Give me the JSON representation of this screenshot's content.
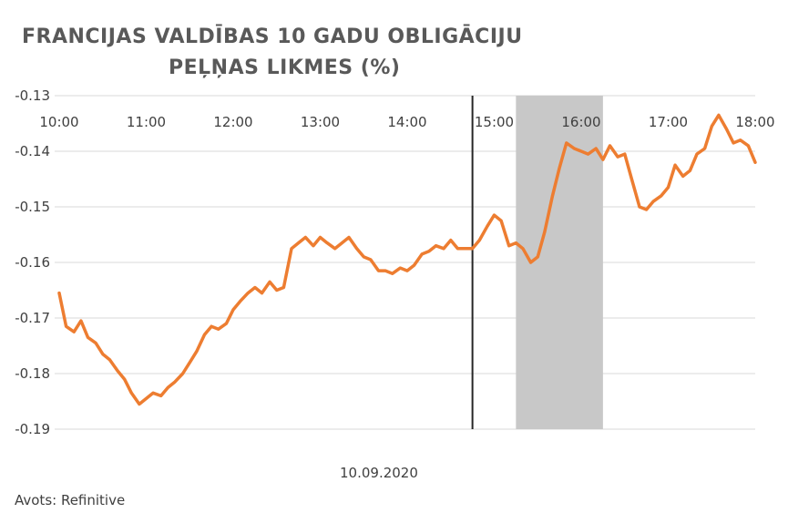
{
  "chart_data": {
    "type": "line",
    "title_lines": [
      "FRANCIJAS  VALDĪBAS  10 GADU  OBLIGĀCIJU",
      "PEĻŅAS  LIKMES  (%)"
    ],
    "xlabel": "10.09.2020",
    "source": "Avots: Refinitive",
    "x_tick_labels": [
      "10:00",
      "11:00",
      "12:00",
      "13:00",
      "14:00",
      "15:00",
      "16:00",
      "17:00",
      "18:00"
    ],
    "y_tick_labels": [
      "-0.13",
      "-0.14",
      "-0.15",
      "-0.16",
      "-0.17",
      "-0.18",
      "-0.19"
    ],
    "ylim": [
      -0.19,
      -0.13
    ],
    "xlim_hours": [
      10,
      18
    ],
    "grid": "horizontal",
    "shaded_region_hours": [
      15.25,
      16.25
    ],
    "vertical_line_hour": 14.75,
    "colors": {
      "series": "#ED7D31",
      "grid": "#D9D9D9",
      "shade": "#C8C8C8",
      "vline": "#262626",
      "text": "#404040"
    },
    "series": [
      {
        "x": [
          10.0,
          10.08,
          10.17,
          10.25,
          10.33,
          10.42,
          10.5,
          10.58,
          10.67,
          10.75,
          10.83,
          10.92,
          11.0,
          11.08,
          11.17,
          11.25,
          11.33,
          11.42,
          11.5,
          11.58,
          11.67,
          11.75,
          11.83,
          11.92,
          12.0,
          12.08,
          12.17,
          12.25,
          12.33,
          12.42,
          12.5,
          12.58,
          12.67,
          12.75,
          12.83,
          12.92,
          13.0,
          13.08,
          13.17,
          13.25,
          13.33,
          13.42,
          13.5,
          13.58,
          13.67,
          13.75,
          13.83,
          13.92,
          14.0,
          14.08,
          14.17,
          14.25,
          14.33,
          14.42,
          14.5,
          14.58,
          14.67,
          14.75,
          14.83,
          14.92,
          15.0,
          15.08,
          15.17,
          15.25,
          15.33,
          15.42,
          15.5,
          15.58,
          15.67,
          15.75,
          15.83,
          15.92,
          16.0,
          16.08,
          16.17,
          16.25,
          16.33,
          16.42,
          16.5,
          16.58,
          16.67,
          16.75,
          16.83,
          16.92,
          17.0,
          17.08,
          17.17,
          17.25,
          17.33,
          17.42,
          17.5,
          17.58,
          17.67,
          17.75,
          17.83,
          17.92,
          18.0
        ],
        "values": [
          -0.1655,
          -0.1715,
          -0.1725,
          -0.1705,
          -0.1735,
          -0.1745,
          -0.1765,
          -0.1775,
          -0.1795,
          -0.181,
          -0.1835,
          -0.1855,
          -0.1845,
          -0.1835,
          -0.184,
          -0.1825,
          -0.1815,
          -0.18,
          -0.178,
          -0.176,
          -0.173,
          -0.1715,
          -0.172,
          -0.171,
          -0.1685,
          -0.167,
          -0.1655,
          -0.1645,
          -0.1655,
          -0.1635,
          -0.165,
          -0.1645,
          -0.1575,
          -0.1565,
          -0.1555,
          -0.157,
          -0.1555,
          -0.1565,
          -0.1575,
          -0.1565,
          -0.1555,
          -0.1575,
          -0.159,
          -0.1595,
          -0.1615,
          -0.1615,
          -0.162,
          -0.161,
          -0.1615,
          -0.1605,
          -0.1585,
          -0.158,
          -0.157,
          -0.1575,
          -0.156,
          -0.1575,
          -0.1575,
          -0.1575,
          -0.156,
          -0.1535,
          -0.1515,
          -0.1525,
          -0.157,
          -0.1565,
          -0.1575,
          -0.16,
          -0.159,
          -0.1545,
          -0.148,
          -0.143,
          -0.1385,
          -0.1395,
          -0.14,
          -0.1405,
          -0.1395,
          -0.1415,
          -0.139,
          -0.141,
          -0.1405,
          -0.145,
          -0.15,
          -0.1505,
          -0.149,
          -0.148,
          -0.1465,
          -0.1425,
          -0.1445,
          -0.1435,
          -0.1405,
          -0.1395,
          -0.1355,
          -0.1335,
          -0.136,
          -0.1385,
          -0.138,
          -0.139,
          -0.142
        ]
      }
    ]
  }
}
